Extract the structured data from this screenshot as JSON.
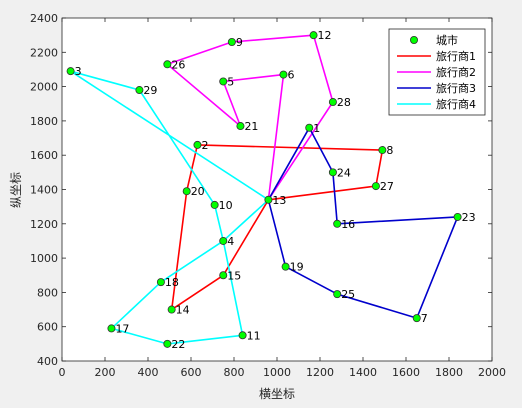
{
  "chart_data": {
    "type": "scatter",
    "title": "",
    "xlabel": "横坐标",
    "ylabel": "纵坐标",
    "xlim": [
      0,
      2000
    ],
    "ylim": [
      400,
      2400
    ],
    "x_ticks": [
      0,
      200,
      400,
      600,
      800,
      1000,
      1200,
      1400,
      1600,
      1800,
      2000
    ],
    "y_ticks": [
      400,
      600,
      800,
      1000,
      1200,
      1400,
      1600,
      1800,
      2000,
      2200,
      2400
    ],
    "grid": false,
    "legend_position": "top-right",
    "legend": [
      {
        "label": "城市",
        "kind": "marker",
        "color": "#00ff00"
      },
      {
        "label": "旅行商1",
        "kind": "line",
        "color": "#ff0000"
      },
      {
        "label": "旅行商2",
        "kind": "line",
        "color": "#ff00ff"
      },
      {
        "label": "旅行商3",
        "kind": "line",
        "color": "#0000cc"
      },
      {
        "label": "旅行商4",
        "kind": "line",
        "color": "#00ffff"
      }
    ],
    "cities": [
      {
        "id": "1",
        "x": 1150,
        "y": 1760
      },
      {
        "id": "2",
        "x": 630,
        "y": 1660
      },
      {
        "id": "3",
        "x": 40,
        "y": 2090
      },
      {
        "id": "4",
        "x": 750,
        "y": 1100
      },
      {
        "id": "5",
        "x": 750,
        "y": 2030
      },
      {
        "id": "6",
        "x": 1030,
        "y": 2070
      },
      {
        "id": "7",
        "x": 1650,
        "y": 650
      },
      {
        "id": "8",
        "x": 1490,
        "y": 1630
      },
      {
        "id": "9",
        "x": 790,
        "y": 2260
      },
      {
        "id": "10",
        "x": 710,
        "y": 1310
      },
      {
        "id": "11",
        "x": 840,
        "y": 550
      },
      {
        "id": "12",
        "x": 1170,
        "y": 2300
      },
      {
        "id": "13",
        "x": 960,
        "y": 1340
      },
      {
        "id": "14",
        "x": 510,
        "y": 700
      },
      {
        "id": "15",
        "x": 750,
        "y": 900
      },
      {
        "id": "16",
        "x": 1280,
        "y": 1200
      },
      {
        "id": "17",
        "x": 230,
        "y": 590
      },
      {
        "id": "18",
        "x": 460,
        "y": 860
      },
      {
        "id": "19",
        "x": 1040,
        "y": 950
      },
      {
        "id": "20",
        "x": 580,
        "y": 1390
      },
      {
        "id": "21",
        "x": 830,
        "y": 1770
      },
      {
        "id": "22",
        "x": 490,
        "y": 500
      },
      {
        "id": "23",
        "x": 1840,
        "y": 1240
      },
      {
        "id": "24",
        "x": 1260,
        "y": 1500
      },
      {
        "id": "25",
        "x": 1280,
        "y": 790
      },
      {
        "id": "26",
        "x": 490,
        "y": 2130
      },
      {
        "id": "27",
        "x": 1460,
        "y": 1420
      },
      {
        "id": "28",
        "x": 1260,
        "y": 1910
      },
      {
        "id": "29",
        "x": 360,
        "y": 1980
      }
    ],
    "series": [
      {
        "name": "旅行商1",
        "color": "#ff0000",
        "route": [
          "13",
          "15",
          "14",
          "20",
          "2",
          "8",
          "27",
          "13"
        ]
      },
      {
        "name": "旅行商2",
        "color": "#ff00ff",
        "route": [
          "13",
          "6",
          "5",
          "21",
          "26",
          "9",
          "12",
          "28",
          "13"
        ]
      },
      {
        "name": "旅行商3",
        "color": "#0000cc",
        "route": [
          "13",
          "1",
          "24",
          "16",
          "23",
          "7",
          "25",
          "19",
          "13"
        ]
      },
      {
        "name": "旅行商4",
        "color": "#00ffff",
        "route": [
          "13",
          "3",
          "29",
          "10",
          "4",
          "18",
          "17",
          "22",
          "11",
          "4",
          "13"
        ]
      }
    ]
  }
}
